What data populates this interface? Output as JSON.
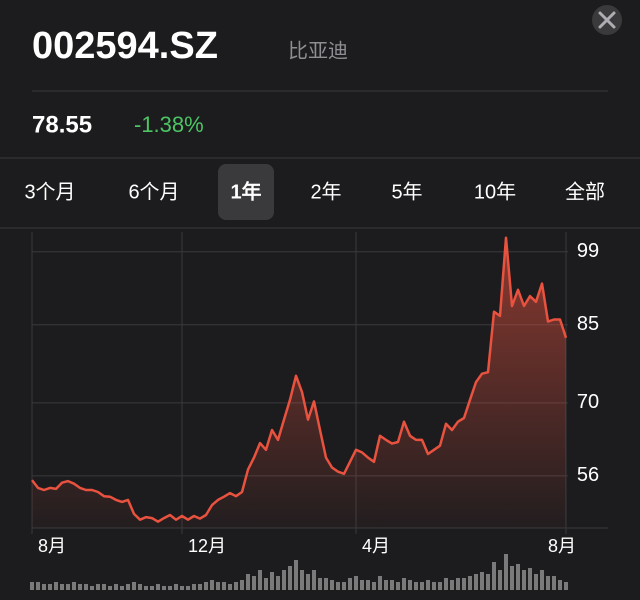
{
  "header": {
    "symbol": "002594.SZ",
    "name": "比亚迪",
    "price": "78.55",
    "change": "-1.38%"
  },
  "tabs": {
    "items": [
      "3个月",
      "6个月",
      "1年",
      "2年",
      "5年",
      "10年",
      "全部"
    ],
    "selected": 2
  },
  "chart_data": {
    "type": "line",
    "categories": [
      "8月",
      null,
      null,
      null,
      null,
      null,
      null,
      null,
      null,
      null,
      null,
      null,
      null,
      null,
      null,
      null,
      null,
      null,
      null,
      null,
      null,
      null,
      null,
      null,
      null,
      "12月",
      null,
      null,
      null,
      null,
      null,
      null,
      null,
      null,
      null,
      null,
      null,
      null,
      null,
      null,
      null,
      null,
      null,
      null,
      null,
      null,
      null,
      null,
      null,
      null,
      null,
      null,
      null,
      null,
      "4月",
      null,
      null,
      null,
      null,
      null,
      null,
      null,
      null,
      null,
      null,
      null,
      null,
      null,
      null,
      null,
      null,
      null,
      null,
      null,
      null,
      null,
      null,
      null,
      null,
      null,
      null,
      null,
      null,
      null,
      null,
      null,
      null,
      null,
      null,
      "8月"
    ],
    "series": [
      {
        "name": "Price",
        "color": "#e8523f",
        "values": [
          55.2,
          53.7,
          53.3,
          53.7,
          53.5,
          54.7,
          55.0,
          54.5,
          53.7,
          53.3,
          53.3,
          52.9,
          52.1,
          52.0,
          51.4,
          51.0,
          51.4,
          48.7,
          47.6,
          48.1,
          47.9,
          47.2,
          47.9,
          48.5,
          47.6,
          48.3,
          47.6,
          48.3,
          47.8,
          48.5,
          50.4,
          51.4,
          52.0,
          52.7,
          52.1,
          52.9,
          57.2,
          59.5,
          62.3,
          61.0,
          64.8,
          62.9,
          66.8,
          70.6,
          75.2,
          72.1,
          66.8,
          70.3,
          64.8,
          59.5,
          57.6,
          56.8,
          56.4,
          58.7,
          61.0,
          60.5,
          59.5,
          58.7,
          63.7,
          62.9,
          62.2,
          62.5,
          66.4,
          63.7,
          62.9,
          62.9,
          60.2,
          61.0,
          61.8,
          66.0,
          64.8,
          66.4,
          67.1,
          70.6,
          74.0,
          75.6,
          75.9,
          87.5,
          86.7,
          101.7,
          88.6,
          91.7,
          88.6,
          90.5,
          89.4,
          92.9,
          85.6,
          86.0,
          86.0,
          82.5
        ]
      },
      {
        "name": "Volume",
        "color": "#7a7a7a",
        "values": [
          2,
          2,
          1.5,
          1.5,
          2,
          1.5,
          1.5,
          2,
          1.5,
          1.5,
          1,
          1.5,
          1.5,
          1,
          1.5,
          1,
          1.5,
          2,
          1.5,
          1,
          1,
          1.5,
          1,
          1,
          1.5,
          1,
          1,
          1.5,
          1.5,
          2,
          2.5,
          2,
          2,
          1.5,
          2,
          2.5,
          4,
          3.5,
          5,
          3,
          4.5,
          3.5,
          5,
          6,
          7.5,
          5,
          4,
          5,
          3,
          3,
          2.5,
          2,
          2,
          3,
          3.5,
          2.5,
          2.5,
          2,
          3.5,
          2.5,
          2.5,
          2,
          3,
          2.5,
          2,
          2,
          2.5,
          2,
          2,
          3,
          2.5,
          3,
          3,
          3.5,
          4,
          4.5,
          4,
          7,
          5,
          9,
          6,
          6.5,
          5,
          5.5,
          4,
          5,
          3.5,
          3.5,
          2.5,
          2
        ]
      }
    ],
    "ylim": [
      46,
      102.8
    ],
    "yticks": [
      99,
      85,
      70,
      56
    ],
    "volume_lim": [
      0,
      10
    ],
    "grid": true
  }
}
